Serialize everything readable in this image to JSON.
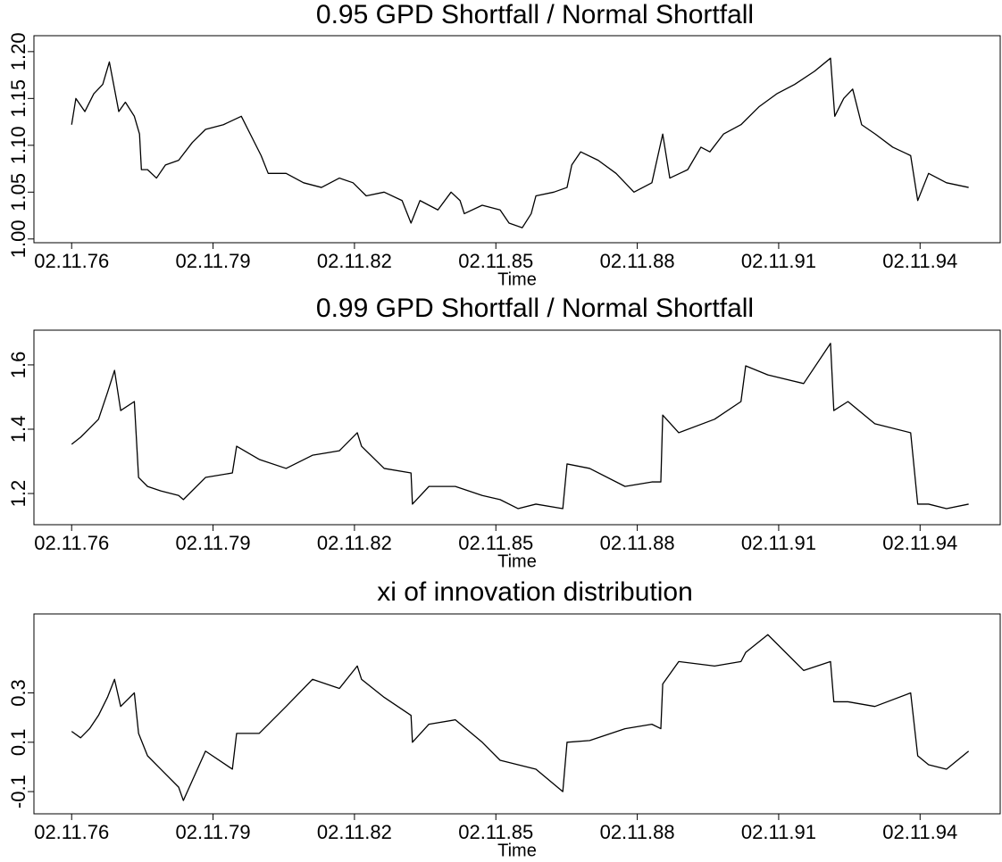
{
  "chart_data": [
    {
      "type": "line",
      "title": "0.95 GPD Shortfall / Normal Shortfall",
      "xlabel": "Time",
      "color": "#000000",
      "x": [
        1976.84,
        1976.93,
        1977.12,
        1977.31,
        1977.5,
        1977.64,
        1977.75,
        1977.84,
        1977.98,
        1978.17,
        1978.28,
        1978.32,
        1978.45,
        1978.64,
        1978.83,
        1979.11,
        1979.4,
        1979.68,
        1980.06,
        1980.44,
        1980.63,
        1980.86,
        1981.01,
        1981.39,
        1981.76,
        1982.14,
        1982.52,
        1982.81,
        1983.09,
        1983.47,
        1983.85,
        1984.04,
        1984.23,
        1984.61,
        1984.89,
        1985.08,
        1985.17,
        1985.55,
        1985.93,
        1986.12,
        1986.4,
        1986.59,
        1986.69,
        1987.07,
        1987.35,
        1987.45,
        1987.64,
        1988.01,
        1988.39,
        1988.77,
        1989.15,
        1989.38,
        1989.53,
        1989.91,
        1990.19,
        1990.38,
        1990.67,
        1991.04,
        1991.42,
        1991.8,
        1992.18,
        1992.6,
        1992.94,
        1993.03,
        1993.22,
        1993.41,
        1993.6,
        1993.89,
        1994.26,
        1994.64,
        1994.79,
        1995.02,
        1995.4,
        1995.87
      ],
      "values": [
        1.122,
        1.15,
        1.136,
        1.155,
        1.165,
        1.189,
        1.16,
        1.136,
        1.146,
        1.131,
        1.112,
        1.074,
        1.074,
        1.065,
        1.079,
        1.084,
        1.103,
        1.117,
        1.122,
        1.131,
        1.112,
        1.089,
        1.07,
        1.07,
        1.06,
        1.055,
        1.065,
        1.06,
        1.046,
        1.05,
        1.041,
        1.017,
        1.041,
        1.031,
        1.05,
        1.041,
        1.027,
        1.036,
        1.031,
        1.017,
        1.012,
        1.027,
        1.046,
        1.05,
        1.055,
        1.079,
        1.093,
        1.084,
        1.07,
        1.05,
        1.06,
        1.112,
        1.065,
        1.074,
        1.098,
        1.093,
        1.112,
        1.122,
        1.141,
        1.155,
        1.165,
        1.179,
        1.193,
        1.131,
        1.15,
        1.16,
        1.122,
        1.112,
        1.098,
        1.089,
        1.041,
        1.07,
        1.06,
        1.055
      ],
      "xlim": [
        1976.04,
        1996.54
      ],
      "xticks": [
        {
          "value": 1976.84,
          "label": "02.11.76"
        },
        {
          "value": 1979.84,
          "label": "02.11.79"
        },
        {
          "value": 1982.84,
          "label": "02.11.82"
        },
        {
          "value": 1985.84,
          "label": "02.11.85"
        },
        {
          "value": 1988.84,
          "label": "02.11.88"
        },
        {
          "value": 1991.84,
          "label": "02.11.91"
        },
        {
          "value": 1994.84,
          "label": "02.11.94"
        }
      ],
      "ylim": [
        0.996,
        1.217
      ],
      "yticks": [
        {
          "value": 1.0,
          "label": "1.00"
        },
        1.05,
        {
          "value": 1.1,
          "label": "1.10"
        },
        1.15,
        {
          "value": 1.2,
          "label": "1.20"
        }
      ]
    },
    {
      "type": "line",
      "title": "0.99 GPD Shortfall / Normal Shortfall",
      "xlabel": "Time",
      "color": "#000000",
      "x": [
        1976.84,
        1977.03,
        1977.22,
        1977.41,
        1977.6,
        1977.75,
        1977.88,
        1978.17,
        1978.26,
        1978.45,
        1978.73,
        1979.11,
        1979.21,
        1979.68,
        1980.25,
        1980.34,
        1980.82,
        1981.39,
        1981.95,
        1982.52,
        1982.9,
        1982.99,
        1983.47,
        1984.04,
        1984.07,
        1984.42,
        1984.98,
        1985.55,
        1985.93,
        1986.31,
        1986.69,
        1987.26,
        1987.35,
        1987.83,
        1988.58,
        1989.15,
        1989.34,
        1989.38,
        1989.72,
        1990.48,
        1991.04,
        1991.14,
        1991.61,
        1992.37,
        1992.94,
        1993.01,
        1993.31,
        1993.88,
        1994.64,
        1994.79,
        1995.02,
        1995.4,
        1995.87
      ],
      "values": [
        1.353,
        1.375,
        1.403,
        1.431,
        1.514,
        1.583,
        1.458,
        1.486,
        1.25,
        1.222,
        1.208,
        1.194,
        1.181,
        1.25,
        1.264,
        1.347,
        1.306,
        1.278,
        1.319,
        1.333,
        1.389,
        1.347,
        1.278,
        1.264,
        1.167,
        1.222,
        1.222,
        1.194,
        1.181,
        1.153,
        1.167,
        1.153,
        1.292,
        1.278,
        1.222,
        1.236,
        1.236,
        1.444,
        1.389,
        1.431,
        1.486,
        1.597,
        1.569,
        1.542,
        1.667,
        1.458,
        1.486,
        1.417,
        1.389,
        1.167,
        1.167,
        1.153,
        1.167
      ],
      "xlim": [
        1976.04,
        1996.54
      ],
      "xticks": [
        {
          "value": 1976.84,
          "label": "02.11.76"
        },
        {
          "value": 1979.84,
          "label": "02.11.79"
        },
        {
          "value": 1982.84,
          "label": "02.11.82"
        },
        {
          "value": 1985.84,
          "label": "02.11.85"
        },
        {
          "value": 1988.84,
          "label": "02.11.88"
        },
        {
          "value": 1991.84,
          "label": "02.11.91"
        },
        {
          "value": 1994.84,
          "label": "02.11.94"
        }
      ],
      "ylim": [
        1.103,
        1.708
      ],
      "yticks": [
        1.2,
        1.4,
        1.6
      ]
    },
    {
      "type": "line",
      "title": "xi of innovation distribution",
      "xlabel": "Time",
      "color": "#000000",
      "x": [
        1976.84,
        1977.03,
        1977.22,
        1977.41,
        1977.6,
        1977.75,
        1977.88,
        1978.17,
        1978.26,
        1978.45,
        1978.73,
        1979.11,
        1979.21,
        1979.68,
        1980.25,
        1980.34,
        1980.82,
        1981.39,
        1981.95,
        1982.52,
        1982.9,
        1982.99,
        1983.47,
        1984.04,
        1984.07,
        1984.42,
        1984.98,
        1985.55,
        1985.93,
        1986.31,
        1986.69,
        1987.26,
        1987.35,
        1987.83,
        1988.58,
        1989.15,
        1989.34,
        1989.38,
        1989.72,
        1990.48,
        1991.04,
        1991.14,
        1991.61,
        1992.37,
        1992.94,
        1993.01,
        1993.31,
        1993.88,
        1994.64,
        1994.79,
        1995.02,
        1995.4,
        1995.87
      ],
      "values": [
        0.144,
        0.118,
        0.155,
        0.209,
        0.282,
        0.355,
        0.245,
        0.3,
        0.136,
        0.045,
        -0.009,
        -0.082,
        -0.136,
        0.064,
        -0.009,
        0.136,
        0.136,
        0.245,
        0.355,
        0.318,
        0.409,
        0.355,
        0.282,
        0.209,
        0.1,
        0.173,
        0.191,
        0.1,
        0.027,
        0.009,
        -0.009,
        -0.1,
        0.1,
        0.107,
        0.155,
        0.173,
        0.155,
        0.336,
        0.427,
        0.409,
        0.427,
        0.464,
        0.536,
        0.391,
        0.427,
        0.264,
        0.264,
        0.245,
        0.3,
        0.045,
        0.009,
        -0.009,
        0.064
      ],
      "xlim": [
        1976.04,
        1996.54
      ],
      "xticks": [
        {
          "value": 1976.84,
          "label": "02.11.76"
        },
        {
          "value": 1979.84,
          "label": "02.11.79"
        },
        {
          "value": 1982.84,
          "label": "02.11.82"
        },
        {
          "value": 1985.84,
          "label": "02.11.85"
        },
        {
          "value": 1988.84,
          "label": "02.11.88"
        },
        {
          "value": 1991.84,
          "label": "02.11.91"
        },
        {
          "value": 1994.84,
          "label": "02.11.94"
        }
      ],
      "ylim": [
        -0.19,
        0.62
      ],
      "yticks": [
        -0.1,
        0.1,
        0.3
      ]
    }
  ]
}
